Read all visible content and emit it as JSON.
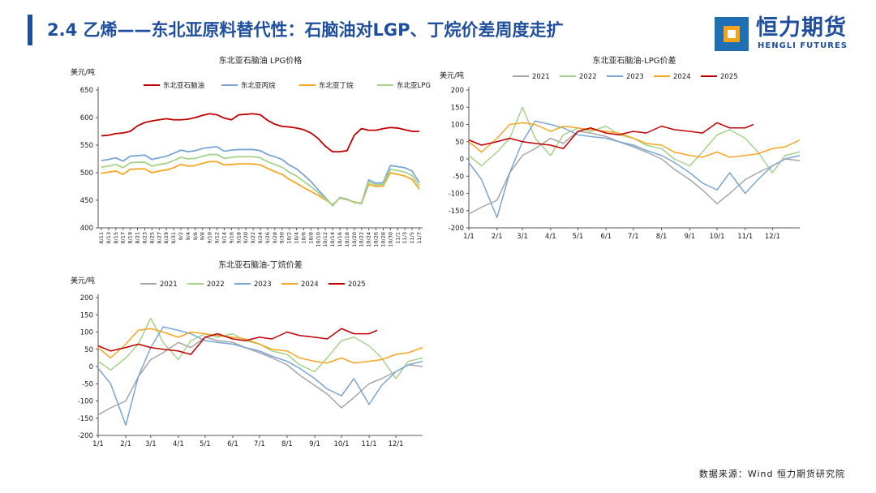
{
  "header": {
    "title": "2.4 乙烯——东北亚原料替代性：石脑油对LGP、丁烷价差周度走扩",
    "accent_color": "#1f4e9c",
    "logo_text": "恒力期货",
    "logo_subtext": "HENGLI FUTURES",
    "logo_icon": "hengli-logo-icon",
    "logo_colors": [
      "#1f6fb5",
      "#f5a21b",
      "#ffffff"
    ]
  },
  "source": "数据来源：Wind 恒力期货研究院",
  "chart_data": [
    {
      "id": "price",
      "type": "line",
      "title": "东北亚石脑油 LPG价格",
      "ylabel": "美元/吨",
      "ylim": [
        400,
        650
      ],
      "yticks": [
        400,
        450,
        500,
        550,
        600,
        650
      ],
      "grid": false,
      "legend": "top",
      "categories": [
        "8/11",
        "8/13",
        "8/15",
        "8/17",
        "8/19",
        "8/21",
        "8/23",
        "8/25",
        "8/27",
        "8/29",
        "8/31",
        "9/2",
        "9/4",
        "9/6",
        "9/8",
        "9/10",
        "9/12",
        "9/14",
        "9/16",
        "9/18",
        "9/20",
        "9/22",
        "9/24",
        "9/26",
        "9/28",
        "9/30",
        "10/2",
        "10/4",
        "10/6",
        "10/8",
        "10/10",
        "10/12",
        "10/14",
        "10/16",
        "10/18",
        "10/20",
        "10/22",
        "10/24",
        "10/26",
        "10/28",
        "10/30",
        "11/1",
        "11/3",
        "11/5",
        "11/7"
      ],
      "series": [
        {
          "name": "东北亚石脑油",
          "color": "#c00000",
          "values": [
            567,
            568,
            571,
            572,
            575,
            585,
            591,
            594,
            596,
            598,
            596,
            596,
            597,
            600,
            604,
            607,
            605,
            599,
            596,
            605,
            606,
            607,
            605,
            595,
            588,
            584,
            583,
            581,
            578,
            572,
            562,
            548,
            538,
            538,
            540,
            568,
            580,
            577,
            577,
            580,
            582,
            581,
            578,
            575,
            575
          ]
        },
        {
          "name": "东北亚丙烷",
          "color": "#7aa6d4",
          "values": [
            522,
            524,
            527,
            521,
            530,
            531,
            532,
            524,
            527,
            530,
            535,
            541,
            538,
            540,
            544,
            546,
            547,
            539,
            541,
            542,
            542,
            542,
            540,
            533,
            529,
            524,
            514,
            507,
            496,
            484,
            469,
            455,
            440,
            455,
            452,
            446,
            445,
            487,
            481,
            482,
            513,
            511,
            509,
            503,
            482
          ]
        },
        {
          "name": "东北亚丁烷",
          "color": "#f5a623",
          "values": [
            499,
            501,
            503,
            497,
            506,
            507,
            507,
            500,
            503,
            505,
            509,
            515,
            512,
            513,
            517,
            520,
            520,
            514,
            515,
            516,
            516,
            516,
            514,
            508,
            502,
            497,
            488,
            481,
            473,
            466,
            459,
            451,
            442,
            454,
            451,
            447,
            444,
            479,
            475,
            476,
            500,
            497,
            494,
            488,
            470
          ]
        },
        {
          "name": "东北亚LPG",
          "color": "#a6d289",
          "values": [
            510,
            512,
            515,
            509,
            518,
            519,
            519,
            512,
            515,
            517,
            522,
            528,
            525,
            526,
            530,
            533,
            533,
            526,
            528,
            529,
            529,
            529,
            527,
            520,
            515,
            510,
            501,
            494,
            484,
            475,
            464,
            453,
            441,
            454,
            451,
            446,
            444,
            483,
            478,
            479,
            506,
            504,
            501,
            495,
            476
          ]
        }
      ]
    },
    {
      "id": "lpg-spread",
      "type": "line",
      "title": "东北亚石脑油-LPG价差",
      "ylabel": "美元/吨",
      "ylim": [
        -200,
        200
      ],
      "yticks": [
        -200,
        -150,
        -100,
        -50,
        0,
        50,
        100,
        150,
        200
      ],
      "grid": false,
      "legend": "top",
      "xlim": [
        "1/1",
        "12/31"
      ],
      "xticks": [
        "1/1",
        "2/1",
        "3/1",
        "4/1",
        "5/1",
        "6/1",
        "7/1",
        "8/1",
        "9/1",
        "10/1",
        "11/1",
        "12/1"
      ],
      "series": [
        {
          "name": "2021",
          "color": "#a6a6a6",
          "x": [
            "1/1",
            "1/15",
            "2/1",
            "2/15",
            "3/1",
            "3/15",
            "4/1",
            "4/15",
            "5/1",
            "5/15",
            "6/1",
            "6/15",
            "7/1",
            "7/15",
            "8/1",
            "8/15",
            "9/1",
            "9/15",
            "10/1",
            "10/15",
            "11/1",
            "11/15",
            "12/1",
            "12/15",
            "12/31"
          ],
          "y": [
            -160,
            -140,
            -120,
            -40,
            10,
            30,
            60,
            45,
            80,
            75,
            65,
            50,
            35,
            20,
            0,
            -30,
            -60,
            -90,
            -130,
            -100,
            -60,
            -40,
            -20,
            0,
            -5
          ]
        },
        {
          "name": "2022",
          "color": "#a6d289",
          "x": [
            "1/1",
            "1/15",
            "2/1",
            "2/15",
            "3/1",
            "3/15",
            "4/1",
            "4/15",
            "5/1",
            "5/15",
            "6/1",
            "6/15",
            "7/1",
            "7/15",
            "8/1",
            "8/15",
            "9/1",
            "9/15",
            "10/1",
            "10/15",
            "11/1",
            "11/15",
            "12/1",
            "12/15",
            "12/31"
          ],
          "y": [
            10,
            -20,
            20,
            60,
            150,
            60,
            10,
            70,
            90,
            80,
            95,
            70,
            60,
            40,
            30,
            0,
            -20,
            20,
            70,
            85,
            60,
            20,
            -40,
            10,
            20
          ]
        },
        {
          "name": "2023",
          "color": "#7aa6d4",
          "x": [
            "1/1",
            "1/15",
            "2/1",
            "2/15",
            "3/1",
            "3/15",
            "4/1",
            "4/15",
            "5/1",
            "5/15",
            "6/1",
            "6/15",
            "7/1",
            "7/15",
            "8/1",
            "8/15",
            "9/1",
            "9/15",
            "10/1",
            "10/15",
            "11/1",
            "11/15",
            "12/1",
            "12/15",
            "12/31"
          ],
          "y": [
            -10,
            -60,
            -170,
            -40,
            50,
            110,
            100,
            90,
            70,
            65,
            60,
            50,
            40,
            25,
            10,
            -10,
            -40,
            -70,
            -90,
            -40,
            -100,
            -60,
            -20,
            0,
            10
          ]
        },
        {
          "name": "2024",
          "color": "#f5a623",
          "x": [
            "1/1",
            "1/15",
            "2/1",
            "2/15",
            "3/1",
            "3/15",
            "4/1",
            "4/15",
            "5/1",
            "5/15",
            "6/1",
            "6/15",
            "7/1",
            "7/15",
            "8/1",
            "8/15",
            "9/1",
            "9/15",
            "10/1",
            "10/15",
            "11/1",
            "11/15",
            "12/1",
            "12/15",
            "12/31"
          ],
          "y": [
            50,
            20,
            60,
            100,
            105,
            100,
            80,
            95,
            90,
            85,
            80,
            75,
            60,
            45,
            40,
            20,
            10,
            5,
            20,
            5,
            10,
            15,
            30,
            35,
            55
          ]
        },
        {
          "name": "2025",
          "color": "#c00000",
          "x": [
            "1/1",
            "1/15",
            "2/1",
            "2/15",
            "3/1",
            "3/15",
            "4/1",
            "4/15",
            "5/1",
            "5/15",
            "6/1",
            "6/15",
            "7/1",
            "7/15",
            "8/1",
            "8/15",
            "9/1",
            "9/15",
            "10/1",
            "10/15",
            "11/1",
            "11/10"
          ],
          "y": [
            55,
            40,
            50,
            60,
            50,
            45,
            40,
            30,
            80,
            90,
            75,
            70,
            80,
            75,
            95,
            85,
            80,
            75,
            105,
            90,
            90,
            100
          ]
        }
      ]
    },
    {
      "id": "butane-spread",
      "type": "line",
      "title": "东北亚石脑油-丁烷价差",
      "ylabel": "美元/吨",
      "ylim": [
        -200,
        200
      ],
      "yticks": [
        -200,
        -150,
        -100,
        -50,
        0,
        50,
        100,
        150,
        200
      ],
      "grid": false,
      "legend": "top",
      "xlim": [
        "1/1",
        "12/31"
      ],
      "xticks": [
        "1/1",
        "2/1",
        "3/1",
        "4/1",
        "5/1",
        "6/1",
        "7/1",
        "8/1",
        "9/1",
        "10/1",
        "11/1",
        "12/1"
      ],
      "series": [
        {
          "name": "2021",
          "color": "#a6a6a6",
          "x": [
            "1/1",
            "1/15",
            "2/1",
            "2/15",
            "3/1",
            "3/15",
            "4/1",
            "4/15",
            "5/1",
            "5/15",
            "6/1",
            "6/15",
            "7/1",
            "7/15",
            "8/1",
            "8/15",
            "9/1",
            "9/15",
            "10/1",
            "10/15",
            "11/1",
            "11/15",
            "12/1",
            "12/15",
            "12/31"
          ],
          "y": [
            -140,
            -120,
            -100,
            -30,
            20,
            40,
            70,
            55,
            85,
            75,
            70,
            55,
            40,
            25,
            5,
            -25,
            -55,
            -80,
            -120,
            -90,
            -50,
            -35,
            -15,
            5,
            0
          ]
        },
        {
          "name": "2022",
          "color": "#a6d289",
          "x": [
            "1/1",
            "1/15",
            "2/1",
            "2/15",
            "3/1",
            "3/15",
            "4/1",
            "4/15",
            "5/1",
            "5/15",
            "6/1",
            "6/15",
            "7/1",
            "7/15",
            "8/1",
            "8/15",
            "9/1",
            "9/15",
            "10/1",
            "10/15",
            "11/1",
            "11/15",
            "12/1",
            "12/15",
            "12/31"
          ],
          "y": [
            15,
            -10,
            25,
            65,
            140,
            70,
            20,
            75,
            95,
            85,
            95,
            75,
            65,
            45,
            35,
            5,
            -15,
            25,
            75,
            85,
            60,
            25,
            -35,
            15,
            25
          ]
        },
        {
          "name": "2023",
          "color": "#7aa6d4",
          "x": [
            "1/1",
            "1/15",
            "2/1",
            "2/15",
            "3/1",
            "3/15",
            "4/1",
            "4/15",
            "5/1",
            "5/15",
            "6/1",
            "6/15",
            "7/1",
            "7/15",
            "8/1",
            "8/15",
            "9/1",
            "9/15",
            "10/1",
            "10/15",
            "11/1",
            "11/15",
            "12/1",
            "12/15",
            "12/31"
          ],
          "y": [
            -5,
            -50,
            -170,
            -30,
            55,
            115,
            105,
            95,
            75,
            70,
            65,
            55,
            45,
            30,
            15,
            -5,
            -35,
            -65,
            -85,
            -35,
            -110,
            -55,
            -15,
            5,
            15
          ]
        },
        {
          "name": "2024",
          "color": "#f5a623",
          "x": [
            "1/1",
            "1/15",
            "2/1",
            "2/15",
            "3/1",
            "3/15",
            "4/1",
            "4/15",
            "5/1",
            "5/15",
            "6/1",
            "6/15",
            "7/1",
            "7/15",
            "8/1",
            "8/15",
            "9/1",
            "9/15",
            "10/1",
            "10/15",
            "11/1",
            "11/15",
            "12/1",
            "12/15",
            "12/31"
          ],
          "y": [
            55,
            25,
            65,
            105,
            110,
            100,
            85,
            100,
            95,
            90,
            85,
            80,
            65,
            50,
            45,
            25,
            15,
            10,
            25,
            10,
            15,
            20,
            35,
            40,
            55
          ]
        },
        {
          "name": "2025",
          "color": "#c00000",
          "x": [
            "1/1",
            "1/15",
            "2/1",
            "2/15",
            "3/1",
            "3/15",
            "4/1",
            "4/15",
            "5/1",
            "5/15",
            "6/1",
            "6/15",
            "7/1",
            "7/15",
            "8/1",
            "8/15",
            "9/1",
            "9/15",
            "10/1",
            "10/15",
            "11/1",
            "11/10"
          ],
          "y": [
            60,
            45,
            55,
            65,
            55,
            50,
            45,
            35,
            85,
            95,
            80,
            75,
            85,
            80,
            100,
            90,
            85,
            80,
            110,
            95,
            95,
            105
          ]
        }
      ]
    }
  ]
}
